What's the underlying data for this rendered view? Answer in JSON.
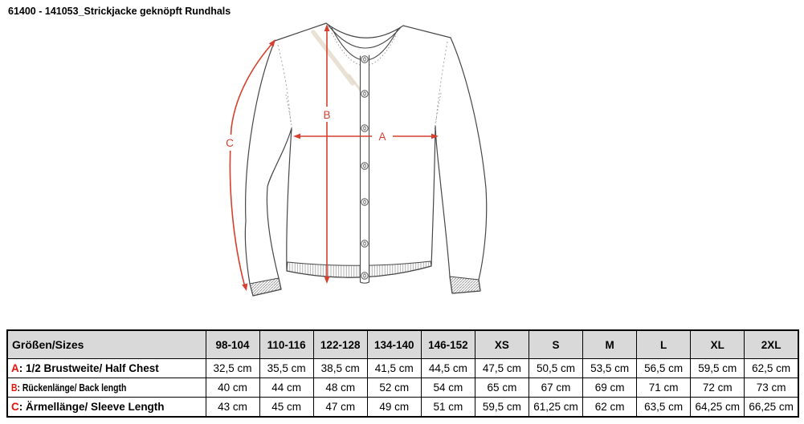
{
  "title": "61400 - 141053_Strickjacke geknöpft Rundhals",
  "colors": {
    "arrow_red": "#d6402e",
    "key_red": "#e8120b",
    "header_bg": "#d9d9d9",
    "line_gray": "#474747"
  },
  "diagram": {
    "label_a": "A",
    "label_b": "B",
    "label_c": "C"
  },
  "table": {
    "header_label": "Größen/Sizes",
    "columns": [
      "98-104",
      "110-116",
      "122-128",
      "134-140",
      "146-152",
      "XS",
      "S",
      "M",
      "L",
      "XL",
      "2XL"
    ],
    "rows": [
      {
        "key": "A",
        "rest": ": 1/2 Brustweite/ Half Chest",
        "condensed": false,
        "values": [
          "32,5 cm",
          "35,5 cm",
          "38,5 cm",
          "41,5 cm",
          "44,5 cm",
          "47,5 cm",
          "50,5 cm",
          "53,5 cm",
          "56,5 cm",
          "59,5 cm",
          "62,5 cm"
        ]
      },
      {
        "key": "B",
        "rest": ": Rückenlänge/ Back length",
        "condensed": true,
        "values": [
          "40 cm",
          "44 cm",
          "48 cm",
          "52 cm",
          "54 cm",
          "65 cm",
          "67 cm",
          "69 cm",
          "71 cm",
          "72 cm",
          "73 cm"
        ]
      },
      {
        "key": "C",
        "rest": ": Ärmellänge/ Sleeve Length",
        "condensed": false,
        "values": [
          "43 cm",
          "45 cm",
          "47 cm",
          "49 cm",
          "51 cm",
          "59,5 cm",
          "61,25 cm",
          "62 cm",
          "63,5 cm",
          "64,25 cm",
          "66,25 cm"
        ]
      }
    ]
  }
}
